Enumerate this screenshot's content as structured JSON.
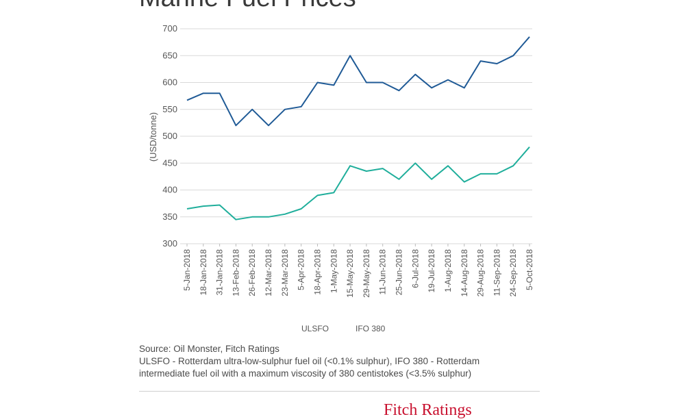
{
  "title": "Marine Fuel Prices",
  "brand": "Fitch Ratings",
  "source_line1": "Source: Oil Monster, Fitch Ratings",
  "source_line2": "ULSFO - Rotterdam ultra-low-sulphur fuel oil (<0.1% sulphur), IFO 380 - Rotterdam",
  "source_line3": "intermediate fuel oil with a maximum viscosity of 380 centistokes (<3.5% sulphur)",
  "colors": {
    "ULSFO": "#1f5a96",
    "IFO 380": "#1fae9b",
    "grid": "#d9d9d9"
  },
  "chart_data": {
    "type": "line",
    "title": "Marine Fuel Prices",
    "ylabel": "(USD/tonne)",
    "ylim": [
      300,
      700
    ],
    "yticks": [
      300,
      350,
      400,
      450,
      500,
      550,
      600,
      650,
      700
    ],
    "grid": true,
    "legend_position": "bottom",
    "x": [
      "5-Jan-2018",
      "18-Jan-2018",
      "31-Jan-2018",
      "13-Feb-2018",
      "26-Feb-2018",
      "12-Mar-2018",
      "23-Mar-2018",
      "5-Apr-2018",
      "18-Apr-2018",
      "1-May-2018",
      "15-May-2018",
      "29-May-2018",
      "11-Jun-2018",
      "25-Jun-2018",
      "6-Jul-2018",
      "19-Jul-2018",
      "1-Aug-2018",
      "14-Aug-2018",
      "29-Aug-2018",
      "11-Sep-2018",
      "24-Sep-2018",
      "5-Oct-2018"
    ],
    "series": [
      {
        "name": "ULSFO",
        "values": [
          567,
          580,
          580,
          520,
          550,
          520,
          550,
          555,
          600,
          595,
          650,
          600,
          600,
          585,
          615,
          590,
          605,
          590,
          640,
          635,
          650,
          685
        ]
      },
      {
        "name": "IFO 380",
        "values": [
          365,
          370,
          372,
          345,
          350,
          350,
          355,
          365,
          390,
          395,
          445,
          435,
          440,
          420,
          450,
          420,
          445,
          415,
          430,
          430,
          445,
          480
        ]
      }
    ]
  }
}
